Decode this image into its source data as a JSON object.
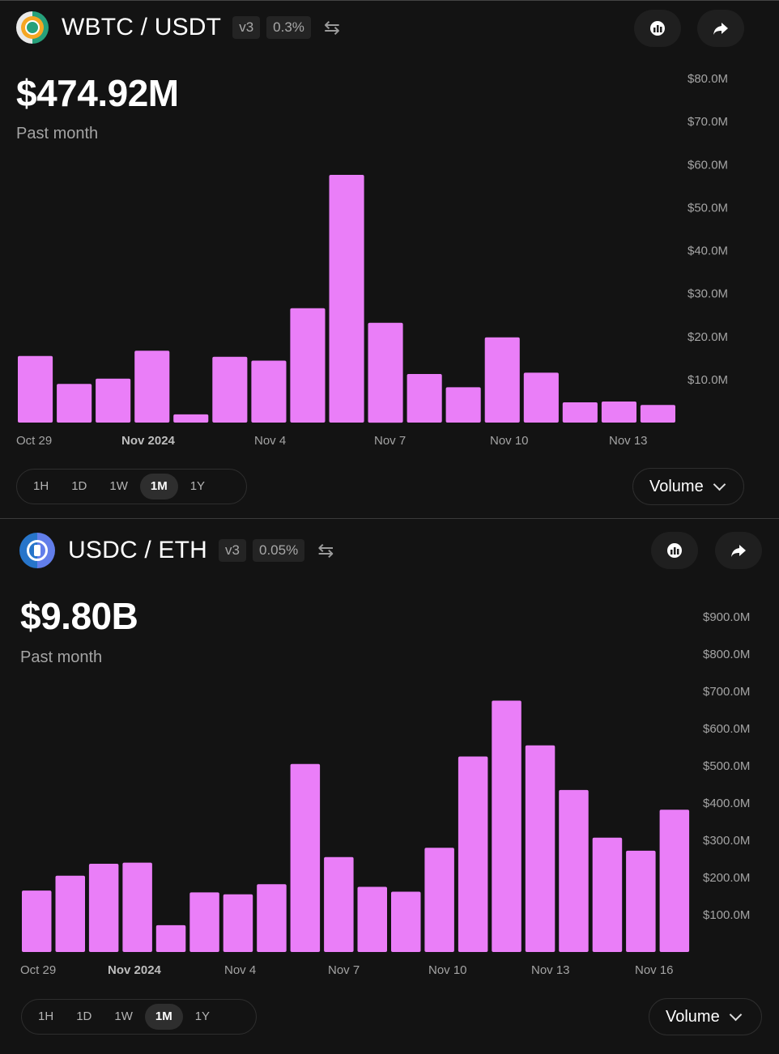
{
  "colors": {
    "bar": "#EA7EF8",
    "bg": "#131313"
  },
  "panels": [
    {
      "pair": "WBTC / USDT",
      "version": "v3",
      "fee": "0.3%",
      "swap_icon": "swap-arrows-icon",
      "price": "$474.92M",
      "subtitle": "Past month",
      "timeframes": [
        "1H",
        "1D",
        "1W",
        "1M",
        "1Y"
      ],
      "active_timeframe": "1M",
      "metric": "Volume",
      "chart_data": {
        "type": "bar",
        "y_ticks": [
          "$10.0M",
          "$20.0M",
          "$30.0M",
          "$40.0M",
          "$50.0M",
          "$60.0M",
          "$70.0M",
          "$80.0M"
        ],
        "x_ticks": [
          "Oct 29",
          "Nov 2024",
          "Nov 4",
          "Nov 7",
          "Nov 10",
          "Nov 13"
        ],
        "ylim": [
          0,
          80
        ],
        "values": [
          15.5,
          9,
          10.2,
          16.7,
          1.9,
          15.3,
          14.4,
          26.6,
          57.6,
          23.2,
          11.3,
          8.2,
          19.8,
          11.6,
          4.7,
          4.9,
          4.1
        ]
      }
    },
    {
      "pair": "USDC / ETH",
      "version": "v3",
      "fee": "0.05%",
      "swap_icon": "swap-arrows-icon",
      "price": "$9.80B",
      "subtitle": "Past month",
      "timeframes": [
        "1H",
        "1D",
        "1W",
        "1M",
        "1Y"
      ],
      "active_timeframe": "1M",
      "metric": "Volume",
      "chart_data": {
        "type": "bar",
        "y_ticks": [
          "$100.0M",
          "$200.0M",
          "$300.0M",
          "$400.0M",
          "$500.0M",
          "$600.0M",
          "$700.0M",
          "$800.0M",
          "$900.0M"
        ],
        "x_ticks": [
          "Oct 29",
          "Nov 2024",
          "Nov 4",
          "Nov 7",
          "Nov 10",
          "Nov 13",
          "Nov 16"
        ],
        "ylim": [
          0,
          900
        ],
        "values": [
          165,
          205,
          237,
          240,
          72,
          160,
          155,
          182,
          505,
          255,
          175,
          162,
          280,
          525,
          675,
          555,
          435,
          307,
          272,
          382
        ]
      }
    }
  ]
}
